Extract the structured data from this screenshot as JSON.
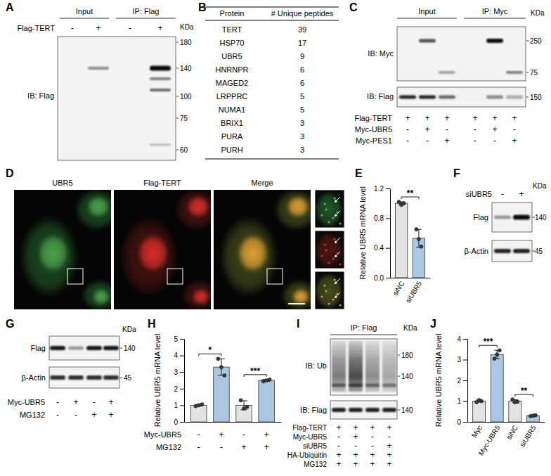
{
  "chart_data": [
    {
      "type": "bar",
      "title": "E",
      "y_label": "Relative UBR5 mRNA level",
      "categories": [
        "siNC",
        "siUBR5"
      ],
      "values": [
        1.0,
        0.53
      ],
      "errors": [
        0.02,
        0.12
      ],
      "points": [
        [
          1.02,
          0.98,
          1.0
        ],
        [
          0.65,
          0.52,
          0.42
        ]
      ],
      "colors": [
        "#e3e3e3",
        "#aac8e4"
      ],
      "ylim": [
        0,
        1.2
      ],
      "yticks": [
        {
          "value": 0,
          "label": "0.0"
        },
        0.4,
        0.8,
        1.2
      ],
      "annotations": [
        {
          "from": 0,
          "to": 1,
          "text": "**"
        }
      ]
    },
    {
      "type": "bar",
      "title": "H",
      "y_label": "Relative UBR5 mRNA level",
      "categories": [
        null,
        null,
        null,
        null
      ],
      "conditions": [
        {
          "label": "Myc-UBR5",
          "signs": [
            "-",
            "+",
            "-",
            "+"
          ]
        },
        {
          "label": "MG132",
          "signs": [
            "-",
            "-",
            "+",
            "+"
          ]
        }
      ],
      "values": [
        1.0,
        3.3,
        1.0,
        2.5
      ],
      "errors": [
        0.05,
        0.5,
        0.27,
        0.05
      ],
      "points": [
        [
          0.95,
          1.0,
          1.05
        ],
        [
          3.8,
          3.3,
          2.8
        ],
        [
          1.3,
          0.8,
          0.9
        ],
        [
          2.45,
          2.5,
          2.55
        ]
      ],
      "colors": [
        "#e3e3e3",
        "#aac8e4",
        "#e3e3e3",
        "#aac8e4"
      ],
      "ylim": [
        0,
        5
      ],
      "yticks": [
        0,
        1,
        2,
        3,
        4,
        5
      ],
      "annotations": [
        {
          "from": 0,
          "to": 1,
          "text": "*"
        },
        {
          "from": 2,
          "to": 3,
          "text": "***"
        }
      ]
    },
    {
      "type": "bar",
      "title": "J",
      "y_label": "Relative UBR5 mRNA level",
      "categories": [
        "Myc",
        "Myc-UBR5",
        "siNC",
        "siUBR5"
      ],
      "values": [
        1.0,
        3.25,
        1.0,
        0.3
      ],
      "errors": [
        0.05,
        0.2,
        0.07,
        0.02
      ],
      "points": [
        [
          0.95,
          1.05,
          1.0
        ],
        [
          3.05,
          3.25,
          3.45
        ],
        [
          1.08,
          0.95,
          0.97
        ],
        [
          0.28,
          0.3,
          0.32
        ]
      ],
      "colors": [
        "#e3e3e3",
        "#aac8e4",
        "#e3e3e3",
        "#aac8e4"
      ],
      "ylim": [
        0,
        4
      ],
      "yticks": [
        0,
        1,
        2,
        3,
        4
      ],
      "annotations": [
        {
          "from": 0,
          "to": 1,
          "text": "***"
        },
        {
          "from": 2,
          "to": 3,
          "text": "**"
        }
      ]
    }
  ],
  "panels": {
    "A": {
      "label": "A",
      "headers": [
        "Input",
        "IP: Flag"
      ],
      "kda_title": "KDa",
      "rows": [
        {
          "label": "Flag-TERT",
          "signs": [
            "-",
            "+",
            "-",
            "+"
          ]
        }
      ],
      "blots": [
        {
          "label": "IB: Flag",
          "kda": [
            180,
            140,
            100,
            75,
            60
          ]
        }
      ]
    },
    "B": {
      "label": "B",
      "table": {
        "header": [
          "Protein",
          "# Unique peptides"
        ],
        "rows": [
          [
            "TERT",
            39
          ],
          [
            "HSP70",
            17
          ],
          [
            "UBR5",
            9
          ],
          [
            "HNRNPR",
            6
          ],
          [
            "MAGED2",
            6
          ],
          [
            "LRPPRC",
            5
          ],
          [
            "NUMA1",
            5
          ],
          [
            "BRIX1",
            3
          ],
          [
            "PURA",
            3
          ],
          [
            "PURH",
            3
          ]
        ]
      }
    },
    "C": {
      "label": "C",
      "headers": [
        "Input",
        "IP: Myc"
      ],
      "kda_title": "KDa",
      "rows": [
        {
          "label": "Flag-TERT",
          "signs": [
            "+",
            "+",
            "+",
            "+",
            "+",
            "+"
          ]
        },
        {
          "label": "Myc-UBR5",
          "signs": [
            "-",
            "+",
            "-",
            "-",
            "+",
            "-"
          ]
        },
        {
          "label": "Myc-PES1",
          "signs": [
            "-",
            "-",
            "+",
            "-",
            "-",
            "+"
          ]
        }
      ],
      "blots": [
        {
          "label": "IB: Myc",
          "kda": [
            250,
            75
          ]
        },
        {
          "label": "IB: Flag",
          "kda": [
            150
          ]
        }
      ]
    },
    "D": {
      "label": "D",
      "channels": [
        "UBR5",
        "Flag-TERT",
        "Merge"
      ]
    },
    "F": {
      "label": "F",
      "kda_title": "KDa",
      "rows": [
        {
          "label": "siUBR5",
          "signs": [
            "-",
            "+"
          ]
        }
      ],
      "blots": [
        {
          "label": "Flag",
          "kda": [
            140
          ]
        },
        {
          "label": "β-Actin",
          "kda": [
            45
          ]
        }
      ]
    },
    "G": {
      "label": "G",
      "kda_title": "KDa",
      "rows": [
        {
          "label": "Myc-UBR5",
          "signs": [
            "-",
            "+",
            "-",
            "+"
          ]
        },
        {
          "label": "MG132",
          "signs": [
            "-",
            "-",
            "+",
            "+"
          ]
        }
      ],
      "blots": [
        {
          "label": "Flag",
          "kda": [
            140
          ]
        },
        {
          "label": "β-Actin",
          "kda": [
            45
          ]
        }
      ]
    },
    "I": {
      "label": "I",
      "headers": [
        "IP: Flag"
      ],
      "kda_title": "KDa",
      "rows": [
        {
          "label": "Flag-TERT",
          "signs": [
            "+",
            "+",
            "+",
            "+"
          ]
        },
        {
          "label": "Myc-UBR5",
          "signs": [
            "-",
            "+",
            "-",
            "-"
          ]
        },
        {
          "label": "siUBR5",
          "signs": [
            "-",
            "-",
            "-",
            "+"
          ]
        },
        {
          "label": "HA-Ubiquitin",
          "signs": [
            "+",
            "+",
            "+",
            "+"
          ]
        },
        {
          "label": "MG132",
          "signs": [
            "+",
            "+",
            "+",
            "+"
          ]
        }
      ],
      "blots": [
        {
          "label": "IB: Ub",
          "kda": [
            180,
            140
          ]
        },
        {
          "label": "IB: Flag",
          "kda": [
            140
          ]
        }
      ]
    }
  }
}
